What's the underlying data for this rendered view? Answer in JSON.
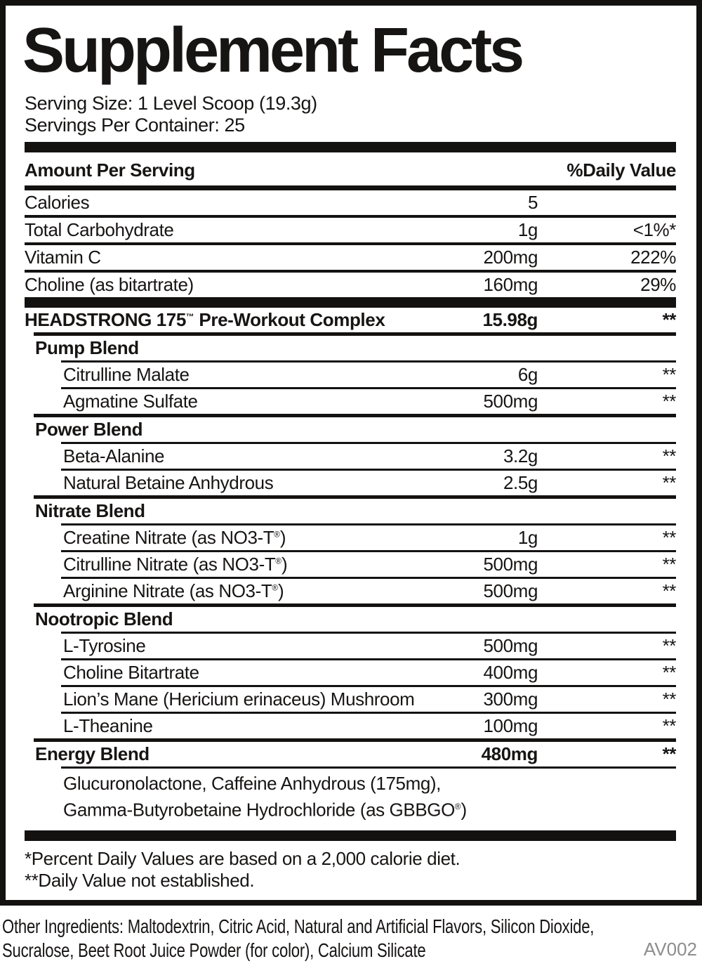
{
  "colors": {
    "text": "#171514",
    "rule": "#131211",
    "background": "#ffffff",
    "code_gray": "#8d8d8d"
  },
  "panel": {
    "title": "Supplement Facts",
    "serving_size": "Serving Size: 1 Level Scoop (19.3g)",
    "servings_per_container": "Servings Per Container: 25",
    "header": {
      "left": "Amount Per Serving",
      "right": "%Daily Value"
    },
    "rows": [
      {
        "type": "main",
        "rule": "none",
        "name": "Calories",
        "amount": "5",
        "dv": ""
      },
      {
        "type": "main",
        "rule": "main",
        "name": "Total Carbohydrate",
        "amount": "1g",
        "dv": "<1%*"
      },
      {
        "type": "main",
        "rule": "main",
        "name": "Vitamin C",
        "amount": "200mg",
        "dv": "222%"
      },
      {
        "type": "main",
        "rule": "main",
        "name": "Choline (as bitartrate)",
        "amount": "160mg",
        "dv": "29%"
      },
      {
        "type": "bar"
      },
      {
        "type": "complex",
        "rule": "none",
        "name": "HEADSTRONG 175™ Pre-Workout Complex",
        "amount": "15.98g",
        "dv": "**"
      },
      {
        "type": "blend",
        "rule": "med",
        "name": "Pump Blend",
        "amount": "",
        "dv": ""
      },
      {
        "type": "sub",
        "rule": "thin",
        "name": "Citrulline Malate",
        "amount": "6g",
        "dv": "**"
      },
      {
        "type": "sub",
        "rule": "thin",
        "name": "Agmatine Sulfate",
        "amount": "500mg",
        "dv": "**"
      },
      {
        "type": "blend",
        "rule": "med",
        "name": "Power Blend",
        "amount": "",
        "dv": ""
      },
      {
        "type": "sub",
        "rule": "thin",
        "name": "Beta-Alanine",
        "amount": "3.2g",
        "dv": "**"
      },
      {
        "type": "sub",
        "rule": "thin",
        "name": "Natural Betaine Anhydrous",
        "amount": "2.5g",
        "dv": "**"
      },
      {
        "type": "blend",
        "rule": "med",
        "name": "Nitrate Blend",
        "amount": "",
        "dv": ""
      },
      {
        "type": "sub",
        "rule": "thin",
        "name": "Creatine Nitrate (as NO3-T®)",
        "amount": "1g",
        "dv": "**"
      },
      {
        "type": "sub",
        "rule": "thin",
        "name": "Citrulline Nitrate (as NO3-T®)",
        "amount": "500mg",
        "dv": "**"
      },
      {
        "type": "sub",
        "rule": "thin",
        "name": "Arginine Nitrate (as NO3-T®)",
        "amount": "500mg",
        "dv": "**"
      },
      {
        "type": "blend",
        "rule": "med",
        "name": "Nootropic Blend",
        "amount": "",
        "dv": ""
      },
      {
        "type": "sub",
        "rule": "thin",
        "name": "L-Tyrosine",
        "amount": "500mg",
        "dv": "**"
      },
      {
        "type": "sub",
        "rule": "thin",
        "name": "Choline Bitartrate",
        "amount": "400mg",
        "dv": "**"
      },
      {
        "type": "sub",
        "rule": "thin",
        "name": "Lion’s Mane (Hericium erinaceus) Mushroom",
        "amount": "300mg",
        "dv": "**"
      },
      {
        "type": "sub",
        "rule": "thin",
        "name": "L-Theanine",
        "amount": "100mg",
        "dv": "**"
      },
      {
        "type": "blend",
        "rule": "med",
        "name": "Energy Blend",
        "amount": "480mg",
        "dv": "**"
      },
      {
        "type": "desc",
        "rule": "thin",
        "lines": [
          "Glucuronolactone, Caffeine Anhydrous (175mg),",
          "Gamma-Butyrobetaine Hydrochloride (as GBBGO®)"
        ]
      },
      {
        "type": "bar"
      }
    ],
    "footnotes": [
      "*Percent Daily Values are based on a 2,000 calorie diet.",
      "**Daily Value not established."
    ]
  },
  "other_ingredients": {
    "line1": "Other Ingredients: Maltodextrin, Citric Acid, Natural and Artificial Flavors, Silicon Dioxide,",
    "line2": "Sucralose, Beet Root Juice Powder (for color), Calcium Silicate"
  },
  "code": "AV002"
}
